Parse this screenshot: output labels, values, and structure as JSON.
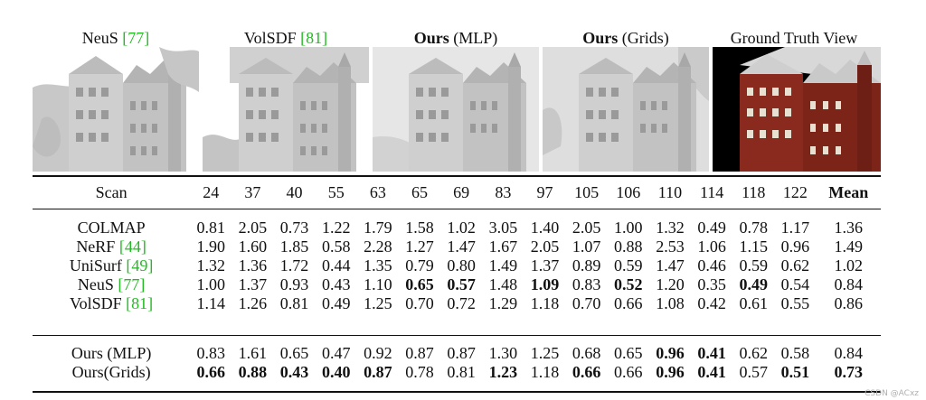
{
  "figure": {
    "panels": [
      {
        "bold": "",
        "text": "NeuS ",
        "cite": "[77]",
        "suffix": ""
      },
      {
        "bold": "",
        "text": "VolSDF ",
        "cite": "[81]",
        "suffix": ""
      },
      {
        "bold": "Ours",
        "text": " (MLP)",
        "cite": "",
        "suffix": ""
      },
      {
        "bold": "Ours",
        "text": " (Grids)",
        "cite": "",
        "suffix": ""
      },
      {
        "bold": "",
        "text": "Ground Truth View",
        "cite": "",
        "suffix": ""
      }
    ]
  },
  "table": {
    "header": [
      "Scan",
      "24",
      "37",
      "40",
      "55",
      "63",
      "65",
      "69",
      "83",
      "97",
      "105",
      "106",
      "110",
      "114",
      "118",
      "122",
      "Mean"
    ],
    "rows": [
      {
        "method": "COLMAP",
        "cite": "",
        "values": [
          "0.81",
          "2.05",
          "0.73",
          "1.22",
          "1.79",
          "1.58",
          "1.02",
          "3.05",
          "1.40",
          "2.05",
          "1.00",
          "1.32",
          "0.49",
          "0.78",
          "1.17",
          "1.36"
        ],
        "bold": []
      },
      {
        "method": "NeRF ",
        "cite": "[44]",
        "values": [
          "1.90",
          "1.60",
          "1.85",
          "0.58",
          "2.28",
          "1.27",
          "1.47",
          "1.67",
          "2.05",
          "1.07",
          "0.88",
          "2.53",
          "1.06",
          "1.15",
          "0.96",
          "1.49"
        ],
        "bold": []
      },
      {
        "method": "UniSurf ",
        "cite": "[49]",
        "values": [
          "1.32",
          "1.36",
          "1.72",
          "0.44",
          "1.35",
          "0.79",
          "0.80",
          "1.49",
          "1.37",
          "0.89",
          "0.59",
          "1.47",
          "0.46",
          "0.59",
          "0.62",
          "1.02"
        ],
        "bold": []
      },
      {
        "method": "NeuS ",
        "cite": "[77]",
        "values": [
          "1.00",
          "1.37",
          "0.93",
          "0.43",
          "1.10",
          "0.65",
          "0.57",
          "1.48",
          "1.09",
          "0.83",
          "0.52",
          "1.20",
          "0.35",
          "0.49",
          "0.54",
          "0.84"
        ],
        "bold": [
          5,
          6,
          8,
          10,
          13
        ]
      },
      {
        "method": "VolSDF ",
        "cite": "[81]",
        "values": [
          "1.14",
          "1.26",
          "0.81",
          "0.49",
          "1.25",
          "0.70",
          "0.72",
          "1.29",
          "1.18",
          "0.70",
          "0.66",
          "1.08",
          "0.42",
          "0.61",
          "0.55",
          "0.86"
        ],
        "bold": []
      }
    ],
    "ours": [
      {
        "method": "Ours (MLP)",
        "cite": "",
        "values": [
          "0.83",
          "1.61",
          "0.65",
          "0.47",
          "0.92",
          "0.87",
          "0.87",
          "1.30",
          "1.25",
          "0.68",
          "0.65",
          "0.96",
          "0.41",
          "0.62",
          "0.58",
          "0.84"
        ],
        "bold": [
          11,
          12
        ]
      },
      {
        "method": "Ours(Grids)",
        "cite": "",
        "values": [
          "0.66",
          "0.88",
          "0.43",
          "0.40",
          "0.87",
          "0.78",
          "0.81",
          "1.23",
          "1.18",
          "0.66",
          "0.66",
          "0.96",
          "0.41",
          "0.57",
          "0.51",
          "0.73"
        ],
        "bold": [
          0,
          1,
          2,
          3,
          4,
          7,
          9,
          11,
          12,
          14,
          15
        ]
      }
    ]
  },
  "watermark": "CSDN @ACxz",
  "colors": {
    "cite": "#22bb22",
    "text": "#111111",
    "rule": "#111111",
    "mesh": "#b8b8b8",
    "brick": "#8a2a1e"
  }
}
